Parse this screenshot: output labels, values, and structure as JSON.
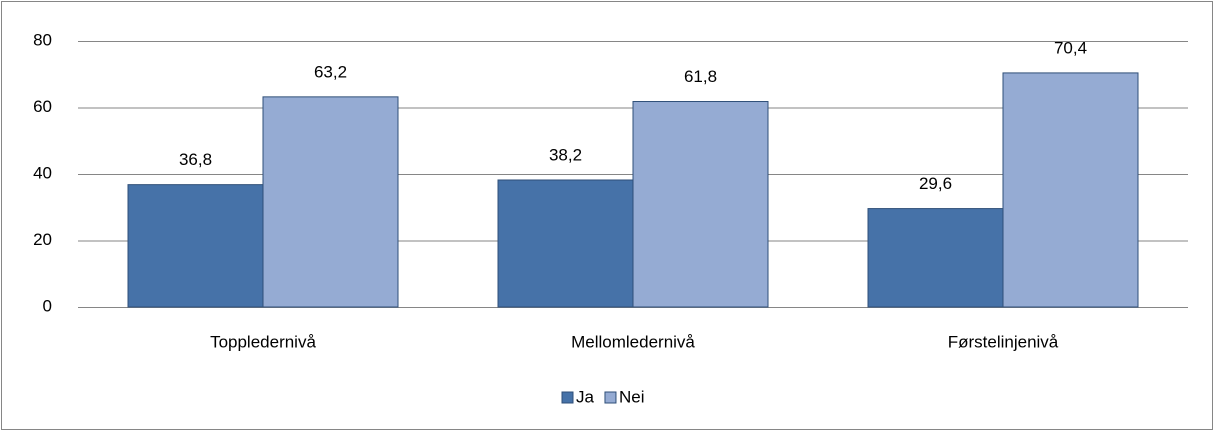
{
  "chart_data": {
    "type": "bar",
    "categories": [
      "Toppledernivå",
      "Mellomledernivå",
      "Førstelinjenivå"
    ],
    "series": [
      {
        "name": "Ja",
        "color": "#4672a8",
        "values": [
          36.8,
          38.2,
          29.6
        ],
        "value_labels": [
          "36,8",
          "38,2",
          "29,6"
        ]
      },
      {
        "name": "Nei",
        "color": "#95abd3",
        "values": [
          63.2,
          61.8,
          70.4
        ],
        "value_labels": [
          "63,2",
          "61,8",
          "70,4"
        ]
      }
    ],
    "ylim": [
      0,
      80
    ],
    "yticks": [
      0,
      20,
      40,
      60,
      80
    ],
    "grid": true,
    "legend": "bottom"
  }
}
